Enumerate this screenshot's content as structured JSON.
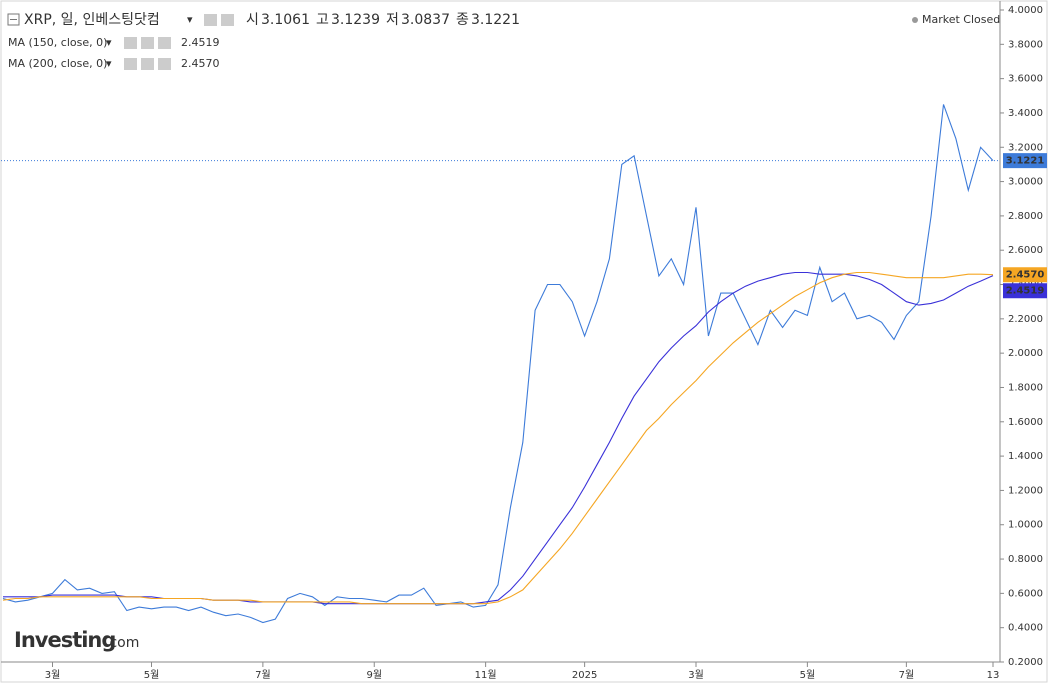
{
  "chart_data": {
    "type": "line",
    "title": "XRP, 일, 인베스팅닷컴",
    "ohlc": [
      {
        "label": "시",
        "value": 3.1061
      },
      {
        "label": "고",
        "value": 3.1239
      },
      {
        "label": "저",
        "value": 3.0837
      },
      {
        "label": "종",
        "value": 3.1221
      }
    ],
    "status": "Market Closed",
    "watermark": {
      "brand": "Investing",
      "suffix": ".com"
    },
    "categories": [
      null,
      null,
      null,
      null,
      "3월",
      null,
      null,
      null,
      null,
      null,
      null,
      null,
      "5월",
      null,
      null,
      null,
      null,
      null,
      null,
      null,
      null,
      "7월",
      null,
      null,
      null,
      null,
      null,
      null,
      null,
      null,
      "9월",
      null,
      null,
      null,
      null,
      null,
      null,
      null,
      null,
      "11월",
      null,
      null,
      null,
      null,
      null,
      null,
      null,
      "2025",
      null,
      null,
      null,
      null,
      null,
      null,
      null,
      null,
      "3월",
      null,
      null,
      null,
      null,
      null,
      null,
      null,
      null,
      "5월",
      null,
      null,
      null,
      null,
      null,
      null,
      null,
      "7월",
      null,
      null,
      null,
      null,
      null,
      null,
      "13"
    ],
    "series": [
      {
        "color": "#3d7bd9",
        "last_label": "3.1221",
        "values": [
          0.57,
          0.55,
          0.56,
          0.58,
          0.6,
          0.68,
          0.62,
          0.63,
          0.6,
          0.61,
          0.5,
          0.52,
          0.51,
          0.52,
          0.52,
          0.5,
          0.52,
          0.49,
          0.47,
          0.48,
          0.46,
          0.43,
          0.45,
          0.57,
          0.6,
          0.58,
          0.53,
          0.58,
          0.57,
          0.57,
          0.56,
          0.55,
          0.59,
          0.59,
          0.63,
          0.53,
          0.54,
          0.55,
          0.52,
          0.53,
          0.65,
          1.1,
          1.48,
          2.25,
          2.4,
          2.4,
          2.3,
          2.1,
          2.3,
          2.55,
          3.1,
          3.15,
          2.8,
          2.45,
          2.55,
          2.4,
          2.85,
          2.1,
          2.35,
          2.35,
          2.2,
          2.05,
          2.25,
          2.15,
          2.25,
          2.22,
          2.5,
          2.3,
          2.35,
          2.2,
          2.22,
          2.18,
          2.08,
          2.22,
          2.3,
          2.8,
          3.45,
          3.25,
          2.95,
          3.2,
          3.1221
        ]
      },
      {
        "name": "MA (150, close, 0)",
        "color": "#3a31d8",
        "last_label": "2.4519",
        "values": [
          0.58,
          0.58,
          0.58,
          0.58,
          0.59,
          0.59,
          0.59,
          0.59,
          0.59,
          0.59,
          0.58,
          0.58,
          0.58,
          0.57,
          0.57,
          0.57,
          0.57,
          0.56,
          0.56,
          0.56,
          0.55,
          0.55,
          0.55,
          0.55,
          0.55,
          0.55,
          0.54,
          0.54,
          0.54,
          0.54,
          0.54,
          0.54,
          0.54,
          0.54,
          0.54,
          0.54,
          0.54,
          0.54,
          0.54,
          0.55,
          0.56,
          0.62,
          0.7,
          0.8,
          0.9,
          1.0,
          1.1,
          1.22,
          1.35,
          1.48,
          1.62,
          1.75,
          1.85,
          1.95,
          2.03,
          2.1,
          2.16,
          2.24,
          2.3,
          2.35,
          2.39,
          2.42,
          2.44,
          2.46,
          2.47,
          2.47,
          2.46,
          2.46,
          2.46,
          2.45,
          2.43,
          2.4,
          2.35,
          2.3,
          2.28,
          2.29,
          2.31,
          2.35,
          2.39,
          2.42,
          2.4519
        ]
      },
      {
        "name": "MA (200, close, 0)",
        "color": "#f5a623",
        "last_label": "2.4570",
        "values": [
          0.56,
          0.57,
          0.57,
          0.58,
          0.58,
          0.58,
          0.58,
          0.58,
          0.58,
          0.58,
          0.58,
          0.58,
          0.57,
          0.57,
          0.57,
          0.57,
          0.57,
          0.56,
          0.56,
          0.56,
          0.56,
          0.55,
          0.55,
          0.55,
          0.55,
          0.55,
          0.55,
          0.55,
          0.55,
          0.54,
          0.54,
          0.54,
          0.54,
          0.54,
          0.54,
          0.54,
          0.54,
          0.54,
          0.54,
          0.54,
          0.55,
          0.58,
          0.62,
          0.7,
          0.78,
          0.86,
          0.95,
          1.05,
          1.15,
          1.25,
          1.35,
          1.45,
          1.55,
          1.62,
          1.7,
          1.77,
          1.84,
          1.92,
          1.99,
          2.06,
          2.12,
          2.18,
          2.23,
          2.28,
          2.33,
          2.37,
          2.41,
          2.44,
          2.46,
          2.47,
          2.47,
          2.46,
          2.45,
          2.44,
          2.44,
          2.44,
          2.44,
          2.45,
          2.46,
          2.46,
          2.457
        ]
      }
    ],
    "ylim": [
      0.2,
      4.0
    ],
    "yticks": [
      {
        "value": 0.2,
        "label": "0.2000"
      },
      {
        "value": 0.4,
        "label": "0.4000"
      },
      {
        "value": 0.6,
        "label": "0.6000"
      },
      {
        "value": 0.8,
        "label": "0.8000"
      },
      {
        "value": 1.0,
        "label": "1.0000"
      },
      {
        "value": 1.2,
        "label": "1.2000"
      },
      {
        "value": 1.4,
        "label": "1.4000"
      },
      {
        "value": 1.6,
        "label": "1.6000"
      },
      {
        "value": 1.8,
        "label": "1.8000"
      },
      {
        "value": 2.0,
        "label": "2.0000"
      },
      {
        "value": 2.2,
        "label": "2.2000"
      },
      {
        "value": 2.4,
        "label": "2.4000"
      },
      {
        "value": 2.6,
        "label": "2.6000"
      },
      {
        "value": 2.8,
        "label": "2.8000"
      },
      {
        "value": 3.0,
        "label": "3.0000"
      },
      {
        "value": 3.2,
        "label": "3.2000"
      },
      {
        "value": 3.4,
        "label": "3.4000"
      },
      {
        "value": 3.6,
        "label": "3.6000"
      },
      {
        "value": 3.8,
        "label": "3.8000"
      },
      {
        "value": 4.0,
        "label": "4.0000"
      }
    ],
    "grid": false
  }
}
